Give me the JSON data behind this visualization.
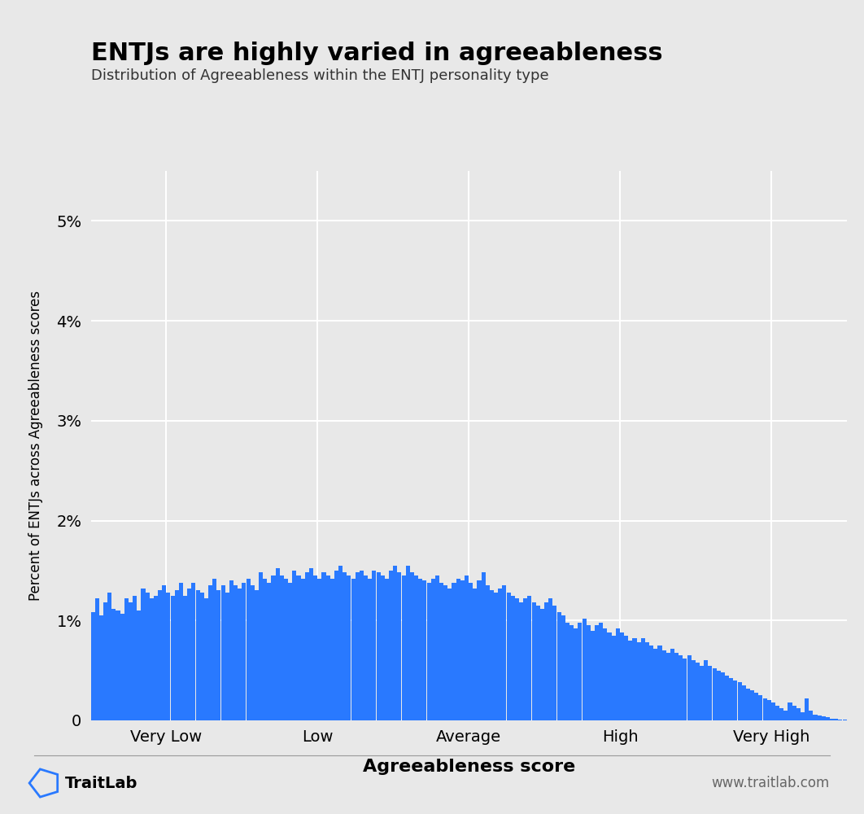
{
  "title": "ENTJs are highly varied in agreeableness",
  "subtitle": "Distribution of Agreeableness within the ENTJ personality type",
  "xlabel": "Agreeableness score",
  "ylabel": "Percent of ENTJs across Agreeableness scores",
  "bar_color": "#2979FF",
  "background_color": "#E8E8E8",
  "yticks": [
    0,
    0.01,
    0.02,
    0.03,
    0.04,
    0.05
  ],
  "ytick_labels": [
    "0",
    "1%",
    "2%",
    "3%",
    "4%",
    "5%"
  ],
  "xtick_positions": [
    0.1,
    0.3,
    0.5,
    0.7,
    0.9
  ],
  "xtick_labels": [
    "Very Low",
    "Low",
    "Average",
    "High",
    "Very High"
  ],
  "xlim": [
    0.0,
    1.0
  ],
  "ylim": [
    0,
    0.055
  ],
  "footer_text_left": "TraitLab",
  "footer_text_right": "www.traitlab.com",
  "bar_values": [
    1.08,
    1.22,
    1.05,
    1.18,
    1.28,
    1.12,
    1.1,
    1.07,
    1.22,
    1.18,
    1.25,
    1.1,
    1.32,
    1.28,
    1.22,
    1.25,
    1.3,
    1.35,
    1.28,
    1.25,
    1.3,
    1.38,
    1.25,
    1.32,
    1.38,
    1.3,
    1.28,
    1.22,
    1.35,
    1.42,
    1.3,
    1.35,
    1.28,
    1.4,
    1.35,
    1.32,
    1.38,
    1.42,
    1.35,
    1.3,
    1.48,
    1.42,
    1.38,
    1.45,
    1.52,
    1.45,
    1.42,
    1.38,
    1.5,
    1.45,
    1.42,
    1.48,
    1.52,
    1.45,
    1.42,
    1.48,
    1.45,
    1.42,
    1.5,
    1.55,
    1.48,
    1.45,
    1.42,
    1.48,
    1.5,
    1.45,
    1.42,
    1.5,
    1.48,
    1.45,
    1.42,
    1.5,
    1.55,
    1.48,
    1.45,
    1.55,
    1.48,
    1.45,
    1.42,
    1.4,
    1.38,
    1.42,
    1.45,
    1.38,
    1.35,
    1.32,
    1.38,
    1.42,
    1.4,
    1.45,
    1.38,
    1.32,
    1.4,
    1.48,
    1.35,
    1.3,
    1.28,
    1.32,
    1.35,
    1.28,
    1.25,
    1.22,
    1.18,
    1.22,
    1.25,
    1.18,
    1.15,
    1.12,
    1.18,
    1.22,
    1.15,
    1.08,
    1.05,
    0.98,
    0.95,
    0.92,
    0.98,
    1.02,
    0.95,
    0.9,
    0.95,
    0.98,
    0.92,
    0.88,
    0.85,
    0.92,
    0.88,
    0.85,
    0.8,
    0.82,
    0.78,
    0.82,
    0.78,
    0.75,
    0.72,
    0.75,
    0.7,
    0.68,
    0.72,
    0.68,
    0.65,
    0.62,
    0.65,
    0.6,
    0.58,
    0.55,
    0.6,
    0.55,
    0.52,
    0.5,
    0.48,
    0.45,
    0.42,
    0.4,
    0.38,
    0.35,
    0.32,
    0.3,
    0.28,
    0.25,
    0.22,
    0.2,
    0.18,
    0.15,
    0.12,
    0.1,
    0.18,
    0.15,
    0.12,
    0.08,
    0.22,
    0.1,
    0.06,
    0.05,
    0.04,
    0.03,
    0.02,
    0.02,
    0.01,
    0.005
  ]
}
